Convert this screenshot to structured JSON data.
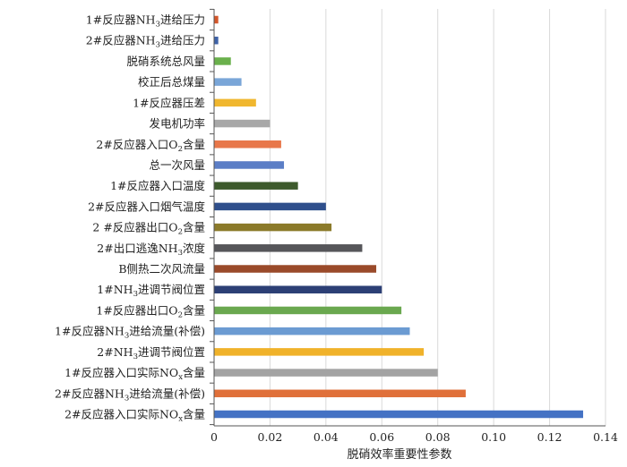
{
  "chart_data": {
    "type": "bar",
    "orientation": "horizontal",
    "title": "",
    "xlabel": "脱硝效率重要性参数",
    "ylabel": "",
    "xlim": [
      0,
      0.14
    ],
    "xticks": [
      "0",
      "0.02",
      "0.04",
      "0.06",
      "0.08",
      "0.10",
      "0.12",
      "0.14"
    ],
    "grid": "vertical",
    "legend": "none",
    "categories": [
      "1#反应器NH3进给压力",
      "2#反应器NH3进给压力",
      "脱硝系统总风量",
      "校正后总煤量",
      "1#反应器压差",
      "发电机功率",
      "2#反应器入口O2含量",
      "总一次风量",
      "1#反应器入口温度",
      "2#反应器入口烟气温度",
      "2 #反应器出口O2含量",
      "2#出口逃逸NH3浓度",
      "B侧热二次风流量",
      "1#NH3进调节阀位置",
      "1#反应器出口O2含量",
      "1#反应器NH3进给流量(补偿)",
      "2#NH3进调节阀位置",
      "1#反应器入口实际NOx含量",
      "2#反应器NH3进给流量(补偿)",
      "2#反应器入口实际NOx含量"
    ],
    "values": [
      0.0015,
      0.0015,
      0.006,
      0.0098,
      0.015,
      0.02,
      0.024,
      0.025,
      0.03,
      0.04,
      0.042,
      0.053,
      0.058,
      0.06,
      0.067,
      0.07,
      0.075,
      0.08,
      0.09,
      0.132
    ],
    "colors": [
      "#d4572a",
      "#3f63a8",
      "#6ab04c",
      "#7aa6d8",
      "#f0b72f",
      "#a8a8a8",
      "#e8774a",
      "#5b7ec6",
      "#3d5a2c",
      "#2f4f8c",
      "#8b7a2a",
      "#56565a",
      "#9a4a2a",
      "#2c3f75",
      "#6aa84f",
      "#6b9bd2",
      "#f0b22a",
      "#a3a3a3",
      "#e0703a",
      "#4472c4"
    ]
  }
}
